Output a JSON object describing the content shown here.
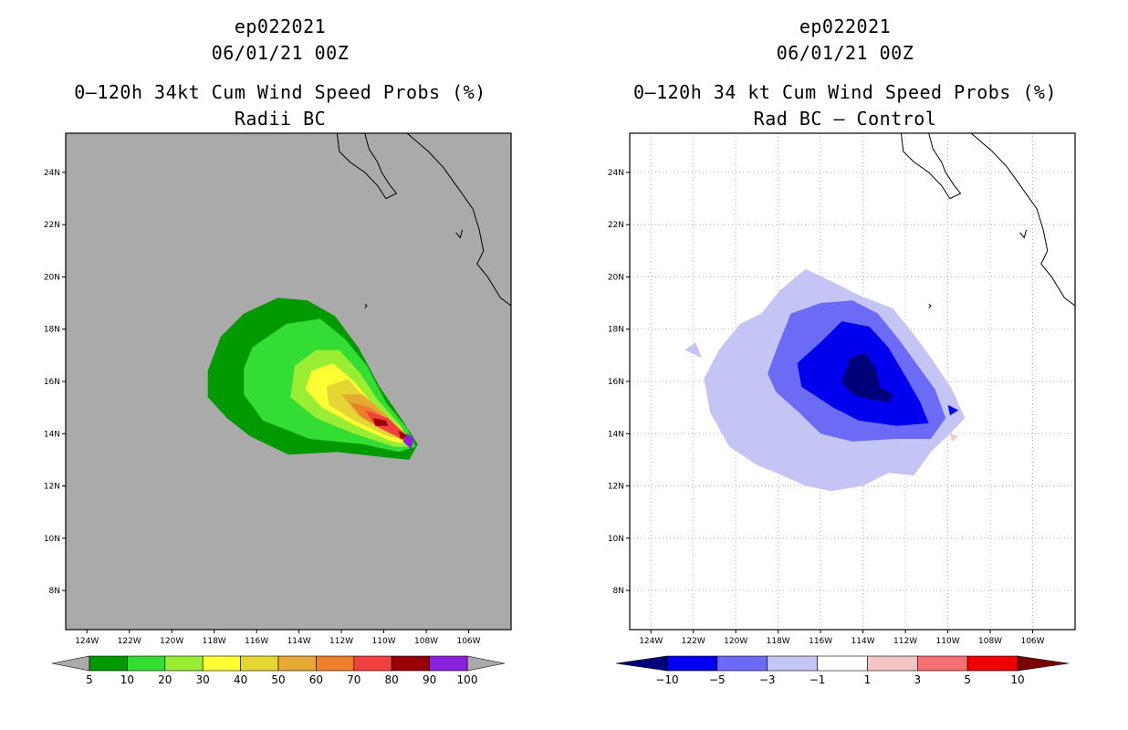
{
  "chart_data": [
    {
      "type": "heatmap",
      "title": {
        "line1": "ep022021",
        "line2": "06/01/21 00Z",
        "line3": "0–120h 34kt Cum Wind Speed Probs (%)",
        "line4": "Radii BC"
      },
      "lon_range": [
        -125.0,
        -104.0
      ],
      "lat_range": [
        6.5,
        25.5
      ],
      "x_ticks": [
        "124W",
        "122W",
        "120W",
        "118W",
        "116W",
        "114W",
        "112W",
        "110W",
        "108W",
        "106W"
      ],
      "y_ticks": [
        "8N",
        "10N",
        "12N",
        "14N",
        "16N",
        "18N",
        "20N",
        "22N",
        "24N"
      ],
      "x_tick_values": [
        -124,
        -122,
        -120,
        -118,
        -116,
        -114,
        -112,
        -110,
        -108,
        -106
      ],
      "y_tick_values": [
        8,
        10,
        12,
        14,
        16,
        18,
        20,
        22,
        24
      ],
      "grid": false,
      "background": "#aaaaaa",
      "colorbar": {
        "labels": [
          "5",
          "10",
          "20",
          "30",
          "40",
          "50",
          "60",
          "70",
          "80",
          "90",
          "100"
        ],
        "colors": [
          "#009900",
          "#33dd33",
          "#99ee33",
          "#ffff33",
          "#e5d633",
          "#e5aa33",
          "#ee7f2a",
          "#f04040",
          "#990000",
          "#8a22dd"
        ],
        "end_left": "#aaaaaa",
        "end_right": "#aaaaaa"
      },
      "contours": [
        {
          "level": "5-10",
          "color": "#009900",
          "lonlat": [
            [
              -116.6,
              18.6
            ],
            [
              -115.0,
              19.2
            ],
            [
              -113.6,
              19.1
            ],
            [
              -112.3,
              18.5
            ],
            [
              -111.2,
              17.3
            ],
            [
              -110.2,
              15.8
            ],
            [
              -109.2,
              14.6
            ],
            [
              -108.4,
              13.6
            ],
            [
              -108.8,
              13.0
            ],
            [
              -110.0,
              13.1
            ],
            [
              -112.2,
              13.3
            ],
            [
              -114.5,
              13.2
            ],
            [
              -116.3,
              13.9
            ],
            [
              -117.4,
              14.6
            ],
            [
              -118.3,
              15.4
            ],
            [
              -118.3,
              16.4
            ],
            [
              -117.7,
              17.7
            ]
          ]
        },
        {
          "level": "10-20",
          "color": "#33dd33",
          "lonlat": [
            [
              -116.2,
              17.3
            ],
            [
              -114.6,
              18.2
            ],
            [
              -113.0,
              18.4
            ],
            [
              -111.8,
              17.6
            ],
            [
              -110.8,
              16.6
            ],
            [
              -109.9,
              15.2
            ],
            [
              -108.9,
              14.2
            ],
            [
              -108.5,
              13.5
            ],
            [
              -109.3,
              13.3
            ],
            [
              -111.0,
              13.6
            ],
            [
              -113.5,
              13.8
            ],
            [
              -115.7,
              14.5
            ],
            [
              -116.6,
              15.5
            ],
            [
              -116.6,
              16.5
            ]
          ]
        },
        {
          "level": "20-30",
          "color": "#99ee33",
          "lonlat": [
            [
              -114.2,
              16.6
            ],
            [
              -113.2,
              17.2
            ],
            [
              -112.1,
              17.2
            ],
            [
              -111.1,
              16.3
            ],
            [
              -110.3,
              15.3
            ],
            [
              -109.2,
              14.3
            ],
            [
              -108.6,
              13.5
            ],
            [
              -109.5,
              13.5
            ],
            [
              -111.4,
              14.0
            ],
            [
              -113.2,
              14.6
            ],
            [
              -114.4,
              15.4
            ]
          ]
        },
        {
          "level": "30-40",
          "color": "#ffff33",
          "lonlat": [
            [
              -113.4,
              16.4
            ],
            [
              -112.4,
              16.7
            ],
            [
              -111.4,
              16.0
            ],
            [
              -110.5,
              15.1
            ],
            [
              -109.2,
              14.2
            ],
            [
              -108.7,
              13.6
            ],
            [
              -109.6,
              13.7
            ],
            [
              -111.3,
              14.3
            ],
            [
              -112.9,
              15.0
            ],
            [
              -113.7,
              15.7
            ]
          ]
        },
        {
          "level": "40-50",
          "color": "#e5d633",
          "lonlat": [
            [
              -112.7,
              15.8
            ],
            [
              -111.7,
              16.1
            ],
            [
              -110.8,
              15.3
            ],
            [
              -109.5,
              14.4
            ],
            [
              -108.8,
              13.7
            ],
            [
              -109.8,
              13.9
            ],
            [
              -111.4,
              14.5
            ],
            [
              -112.6,
              15.1
            ]
          ]
        },
        {
          "level": "50-60",
          "color": "#e5aa33",
          "lonlat": [
            [
              -112.0,
              15.5
            ],
            [
              -111.0,
              15.5
            ],
            [
              -110.0,
              14.8
            ],
            [
              -109.0,
              13.9
            ],
            [
              -109.7,
              14.0
            ],
            [
              -111.2,
              14.7
            ]
          ]
        },
        {
          "level": "60-70",
          "color": "#ee7f2a",
          "lonlat": [
            [
              -111.6,
              15.2
            ],
            [
              -110.6,
              15.0
            ],
            [
              -109.4,
              14.3
            ],
            [
              -108.9,
              13.8
            ],
            [
              -109.8,
              14.1
            ],
            [
              -111.0,
              14.6
            ]
          ]
        },
        {
          "level": "70-80",
          "color": "#f04040",
          "lonlat": [
            [
              -110.9,
              14.9
            ],
            [
              -109.8,
              14.6
            ],
            [
              -109.0,
              14.0
            ],
            [
              -108.8,
              13.6
            ],
            [
              -109.4,
              13.9
            ],
            [
              -110.4,
              14.3
            ]
          ]
        },
        {
          "level": "80-90",
          "color": "#990000",
          "lonlat": [
            [
              -110.5,
              14.6
            ],
            [
              -109.9,
              14.5
            ],
            [
              -109.8,
              14.3
            ],
            [
              -110.4,
              14.3
            ]
          ]
        },
        {
          "level": "80-90",
          "color": "#990000",
          "lonlat": [
            [
              -109.3,
              14.1
            ],
            [
              -108.8,
              13.9
            ],
            [
              -109.2,
              13.8
            ]
          ]
        },
        {
          "level": "90-100",
          "color": "#8a22dd",
          "lonlat": [
            [
              -108.9,
              14.0
            ],
            [
              -108.6,
              13.8
            ],
            [
              -108.7,
              13.4
            ],
            [
              -109.1,
              13.7
            ]
          ]
        }
      ]
    },
    {
      "type": "heatmap",
      "title": {
        "line1": "ep022021",
        "line2": "06/01/21 00Z",
        "line3": "0–120h 34 kt Cum Wind Speed Probs (%)",
        "line4": "Rad BC – Control"
      },
      "lon_range": [
        -125.0,
        -104.0
      ],
      "lat_range": [
        6.5,
        25.5
      ],
      "x_ticks": [
        "124W",
        "122W",
        "120W",
        "118W",
        "116W",
        "114W",
        "112W",
        "110W",
        "108W",
        "106W"
      ],
      "y_ticks": [
        "8N",
        "10N",
        "12N",
        "14N",
        "16N",
        "18N",
        "20N",
        "22N",
        "24N"
      ],
      "x_tick_values": [
        -124,
        -122,
        -120,
        -118,
        -116,
        -114,
        -112,
        -110,
        -108,
        -106
      ],
      "y_tick_values": [
        8,
        10,
        12,
        14,
        16,
        18,
        20,
        22,
        24
      ],
      "grid": true,
      "background": "#ffffff",
      "colorbar": {
        "labels": [
          "−10",
          "−5",
          "−3",
          "−1",
          "1",
          "3",
          "5",
          "10"
        ],
        "colors": [
          "#0000ee",
          "#6b6bf5",
          "#c4c4f5",
          "#ffffff",
          "#f5c4c4",
          "#f57070",
          "#f00000"
        ],
        "end_left": "#00007a",
        "end_right": "#7a0000"
      },
      "contours": [
        {
          "level": "-3 to -1",
          "color": "#c4c4f5",
          "lonlat": [
            [
              -117.9,
              19.5
            ],
            [
              -116.7,
              20.3
            ],
            [
              -115.4,
              19.8
            ],
            [
              -114.2,
              19.3
            ],
            [
              -112.6,
              18.8
            ],
            [
              -111.6,
              17.8
            ],
            [
              -110.7,
              16.8
            ],
            [
              -109.8,
              15.7
            ],
            [
              -109.2,
              14.6
            ],
            [
              -109.9,
              14.0
            ],
            [
              -110.8,
              13.3
            ],
            [
              -111.6,
              12.4
            ],
            [
              -112.8,
              12.5
            ],
            [
              -114.0,
              12.0
            ],
            [
              -115.5,
              11.8
            ],
            [
              -116.7,
              12.0
            ],
            [
              -117.8,
              12.4
            ],
            [
              -119.0,
              12.8
            ],
            [
              -120.3,
              13.5
            ],
            [
              -121.2,
              14.8
            ],
            [
              -121.5,
              16.1
            ],
            [
              -120.8,
              17.2
            ],
            [
              -119.8,
              18.2
            ],
            [
              -118.8,
              18.6
            ]
          ]
        },
        {
          "level": "-3 to -1",
          "color": "#c4c4f5",
          "lonlat": [
            [
              -122.4,
              17.2
            ],
            [
              -121.9,
              17.5
            ],
            [
              -121.6,
              16.9
            ]
          ]
        },
        {
          "level": "-5 to -3",
          "color": "#6b6bf5",
          "lonlat": [
            [
              -117.4,
              18.6
            ],
            [
              -116.0,
              19.0
            ],
            [
              -114.5,
              19.1
            ],
            [
              -113.3,
              18.6
            ],
            [
              -112.3,
              17.6
            ],
            [
              -111.5,
              16.7
            ],
            [
              -110.6,
              15.7
            ],
            [
              -110.1,
              14.6
            ],
            [
              -110.8,
              13.8
            ],
            [
              -112.5,
              13.8
            ],
            [
              -114.5,
              13.7
            ],
            [
              -116.0,
              14.0
            ],
            [
              -117.0,
              14.8
            ],
            [
              -118.1,
              15.6
            ],
            [
              -118.5,
              16.3
            ],
            [
              -118.0,
              17.4
            ]
          ]
        },
        {
          "level": "-10 to -5",
          "color": "#0000ee",
          "lonlat": [
            [
              -116.0,
              17.5
            ],
            [
              -115.0,
              18.3
            ],
            [
              -113.7,
              18.1
            ],
            [
              -112.8,
              17.3
            ],
            [
              -112.0,
              16.2
            ],
            [
              -111.3,
              15.2
            ],
            [
              -110.9,
              14.4
            ],
            [
              -112.4,
              14.3
            ],
            [
              -114.2,
              14.5
            ],
            [
              -115.4,
              15.0
            ],
            [
              -116.9,
              15.8
            ],
            [
              -117.1,
              16.7
            ]
          ]
        },
        {
          "level": "-10 to -5",
          "color": "#0000ee",
          "lonlat": [
            [
              -110.0,
              15.1
            ],
            [
              -109.5,
              14.9
            ],
            [
              -109.9,
              14.7
            ]
          ]
        },
        {
          "level": "<-10",
          "color": "#00007a",
          "lonlat": [
            [
              -114.6,
              16.9
            ],
            [
              -113.9,
              17.1
            ],
            [
              -113.4,
              16.5
            ],
            [
              -113.2,
              15.8
            ],
            [
              -112.6,
              15.5
            ],
            [
              -112.7,
              15.2
            ],
            [
              -113.6,
              15.3
            ],
            [
              -114.5,
              15.5
            ],
            [
              -115.0,
              16.0
            ]
          ]
        },
        {
          "level": "1 to 3",
          "color": "#f5c4c4",
          "lonlat": [
            [
              -109.9,
              14.0
            ],
            [
              -109.5,
              13.9
            ],
            [
              -109.8,
              13.7
            ]
          ]
        }
      ]
    }
  ]
}
